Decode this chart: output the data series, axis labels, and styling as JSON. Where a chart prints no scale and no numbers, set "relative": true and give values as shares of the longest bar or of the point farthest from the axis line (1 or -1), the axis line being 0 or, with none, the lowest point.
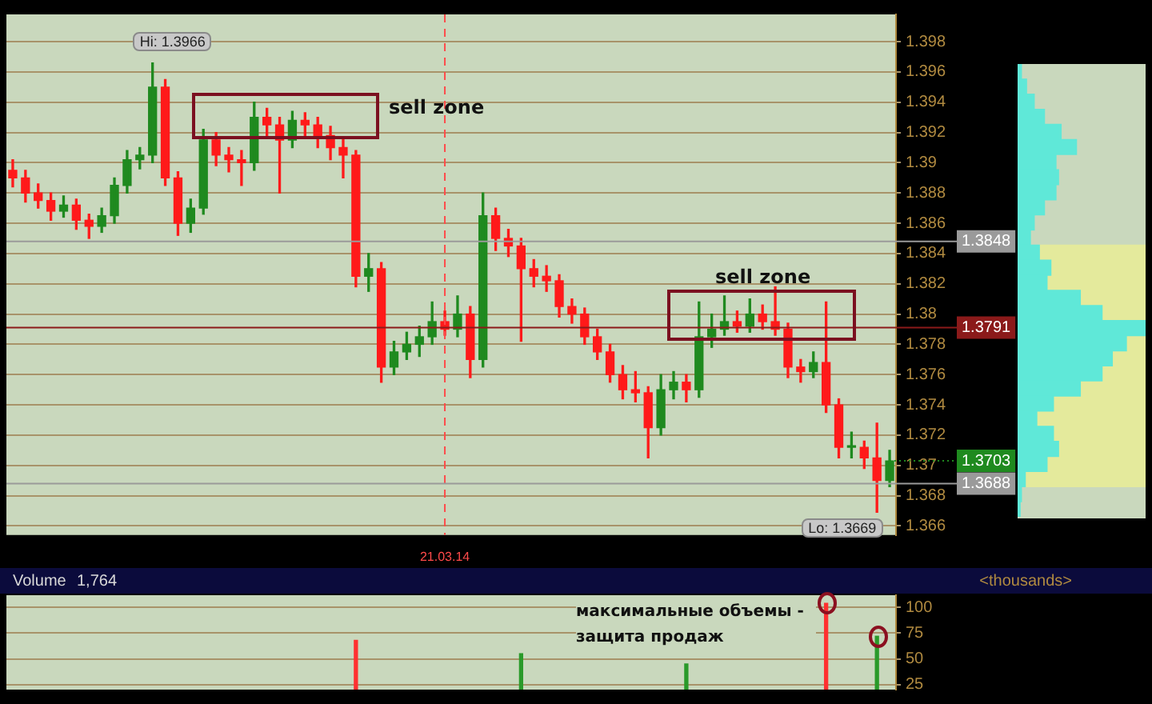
{
  "chart_data": [
    {
      "type": "candlestick",
      "categories": [
        null,
        null,
        null,
        null,
        null,
        null,
        null,
        null,
        null,
        null,
        null,
        null,
        null,
        null,
        null,
        null,
        null,
        null,
        null,
        null,
        null,
        null,
        null,
        null,
        null,
        null,
        null,
        null,
        null,
        null,
        null,
        null,
        null,
        null,
        "21.03.14",
        null,
        null,
        null,
        null,
        null,
        null,
        null,
        null,
        null,
        null,
        null,
        null,
        null,
        null,
        null,
        null,
        null,
        null,
        null,
        null,
        null,
        null,
        null,
        null,
        null,
        null,
        null,
        null,
        null,
        null,
        null,
        null,
        null,
        null,
        null
      ],
      "ohlc": [
        [
          1.3895,
          1.3902,
          1.3884,
          1.389
        ],
        [
          1.389,
          1.3895,
          1.3874,
          1.388
        ],
        [
          1.388,
          1.3886,
          1.387,
          1.3875
        ],
        [
          1.3875,
          1.388,
          1.3862,
          1.3868
        ],
        [
          1.3868,
          1.3878,
          1.3864,
          1.3872
        ],
        [
          1.3872,
          1.3876,
          1.3856,
          1.3862
        ],
        [
          1.3862,
          1.3866,
          1.385,
          1.3858
        ],
        [
          1.3858,
          1.387,
          1.3854,
          1.3865
        ],
        [
          1.3865,
          1.389,
          1.386,
          1.3885
        ],
        [
          1.3885,
          1.3908,
          1.388,
          1.3902
        ],
        [
          1.3902,
          1.391,
          1.3896,
          1.3905
        ],
        [
          1.3905,
          1.3966,
          1.39,
          1.395
        ],
        [
          1.395,
          1.3955,
          1.3885,
          1.389
        ],
        [
          1.389,
          1.3894,
          1.3852,
          1.386
        ],
        [
          1.386,
          1.3876,
          1.3854,
          1.387
        ],
        [
          1.387,
          1.3922,
          1.3866,
          1.3915
        ],
        [
          1.3915,
          1.392,
          1.3898,
          1.3905
        ],
        [
          1.3905,
          1.391,
          1.3894,
          1.3902
        ],
        [
          1.3902,
          1.3908,
          1.3885,
          1.39
        ],
        [
          1.39,
          1.394,
          1.3895,
          1.393
        ],
        [
          1.393,
          1.3936,
          1.3918,
          1.3925
        ],
        [
          1.3925,
          1.393,
          1.388,
          1.3915
        ],
        [
          1.3915,
          1.3934,
          1.391,
          1.3928
        ],
        [
          1.3928,
          1.3933,
          1.3918,
          1.3925
        ],
        [
          1.3925,
          1.393,
          1.391,
          1.3918
        ],
        [
          1.3918,
          1.3924,
          1.3902,
          1.391
        ],
        [
          1.391,
          1.3916,
          1.389,
          1.3905
        ],
        [
          1.3905,
          1.3908,
          1.3818,
          1.3825
        ],
        [
          1.3825,
          1.384,
          1.3815,
          1.383
        ],
        [
          1.383,
          1.3834,
          1.3755,
          1.3765
        ],
        [
          1.3765,
          1.3782,
          1.376,
          1.3775
        ],
        [
          1.3775,
          1.3788,
          1.377,
          1.378
        ],
        [
          1.378,
          1.3792,
          1.3772,
          1.3785
        ],
        [
          1.3785,
          1.3808,
          1.378,
          1.3795
        ],
        [
          1.3795,
          1.3802,
          1.3786,
          1.379
        ],
        [
          1.379,
          1.3812,
          1.3785,
          1.38
        ],
        [
          1.38,
          1.3805,
          1.3758,
          1.377
        ],
        [
          1.377,
          1.388,
          1.3765,
          1.3865
        ],
        [
          1.3865,
          1.387,
          1.3842,
          1.385
        ],
        [
          1.385,
          1.3856,
          1.3838,
          1.3845
        ],
        [
          1.3845,
          1.385,
          1.3782,
          1.383
        ],
        [
          1.383,
          1.3836,
          1.3818,
          1.3825
        ],
        [
          1.3825,
          1.3832,
          1.3815,
          1.3822
        ],
        [
          1.3822,
          1.3826,
          1.3798,
          1.3805
        ],
        [
          1.3805,
          1.381,
          1.3794,
          1.38
        ],
        [
          1.38,
          1.3804,
          1.378,
          1.3785
        ],
        [
          1.3785,
          1.379,
          1.377,
          1.3775
        ],
        [
          1.3775,
          1.378,
          1.3755,
          1.376
        ],
        [
          1.376,
          1.3766,
          1.3744,
          1.375
        ],
        [
          1.375,
          1.3762,
          1.3742,
          1.3748
        ],
        [
          1.3748,
          1.3752,
          1.3705,
          1.3725
        ],
        [
          1.3725,
          1.376,
          1.372,
          1.375
        ],
        [
          1.375,
          1.3762,
          1.3744,
          1.3755
        ],
        [
          1.3755,
          1.376,
          1.3742,
          1.375
        ],
        [
          1.375,
          1.3808,
          1.3745,
          1.3785
        ],
        [
          1.3785,
          1.38,
          1.3778,
          1.379
        ],
        [
          1.379,
          1.3812,
          1.3786,
          1.3795
        ],
        [
          1.3795,
          1.3802,
          1.3788,
          1.3792
        ],
        [
          1.3792,
          1.381,
          1.3788,
          1.38
        ],
        [
          1.38,
          1.3806,
          1.379,
          1.3795
        ],
        [
          1.3795,
          1.3818,
          1.3786,
          1.379
        ],
        [
          1.379,
          1.3794,
          1.3758,
          1.3765
        ],
        [
          1.3765,
          1.377,
          1.3755,
          1.3762
        ],
        [
          1.3762,
          1.3775,
          1.3758,
          1.3768
        ],
        [
          1.3768,
          1.3808,
          1.3735,
          1.374
        ],
        [
          1.374,
          1.3744,
          1.3705,
          1.3712
        ],
        [
          1.3712,
          1.3722,
          1.3705,
          1.3712
        ],
        [
          1.3712,
          1.3716,
          1.3698,
          1.3705
        ],
        [
          1.3705,
          1.3728,
          1.3669,
          1.369
        ],
        [
          1.369,
          1.371,
          1.3686,
          1.3703
        ]
      ],
      "ylim": [
        1.3654,
        1.3998
      ],
      "yticks": [
        1.366,
        1.368,
        1.37,
        1.372,
        1.374,
        1.376,
        1.378,
        1.38,
        1.382,
        1.384,
        1.386,
        1.388,
        1.39,
        1.392,
        1.394,
        1.396,
        1.398
      ],
      "grid": "y",
      "legend": false,
      "ref_lines": [
        {
          "axis": "x",
          "value": "21.03.14",
          "color": "#ff4a4a",
          "line_style": "dashed"
        },
        {
          "axis": "y",
          "value": 1.3848,
          "label": "1.3848",
          "color": "#9a9a9a",
          "line_style": "solid"
        },
        {
          "axis": "y",
          "value": 1.3791,
          "label": "1.3791",
          "color": "#8b1a1a",
          "line_style": "solid"
        },
        {
          "axis": "y",
          "value": 1.3688,
          "label": "1.3688",
          "color": "#9a9a9a",
          "line_style": "solid"
        }
      ],
      "annotations": [
        "Hi: 1.3966",
        "Lo: 1.3669",
        "1.3703",
        "sell zone",
        "sell zone"
      ]
    },
    {
      "type": "bar",
      "title": "Volume",
      "subtitle": "1,764",
      "categories": [
        null,
        null,
        null,
        null,
        null,
        null,
        null,
        null,
        null,
        null,
        null,
        null,
        null,
        null,
        null,
        null,
        null,
        null,
        null,
        null,
        null,
        null,
        null,
        null,
        null,
        null,
        null,
        null,
        null,
        null,
        null,
        null,
        null,
        null,
        null,
        null,
        null,
        null,
        null,
        null,
        null,
        null,
        null,
        null,
        null,
        null,
        null,
        null,
        null,
        null,
        null,
        null,
        null,
        null,
        null,
        null,
        null,
        null,
        null,
        null,
        null,
        null,
        null,
        null,
        null,
        null,
        null,
        null,
        null,
        null
      ],
      "values": [
        null,
        null,
        null,
        null,
        null,
        null,
        null,
        null,
        null,
        null,
        null,
        null,
        null,
        null,
        null,
        null,
        null,
        null,
        null,
        null,
        null,
        null,
        null,
        null,
        null,
        null,
        null,
        68,
        null,
        null,
        null,
        null,
        null,
        null,
        null,
        null,
        null,
        null,
        null,
        null,
        55,
        null,
        null,
        null,
        null,
        null,
        null,
        null,
        null,
        null,
        null,
        null,
        null,
        45,
        null,
        null,
        null,
        null,
        null,
        null,
        null,
        null,
        null,
        null,
        104,
        null,
        null,
        null,
        72,
        null
      ],
      "colors": [
        "#ff3030",
        "#ff3030",
        "#ff3030",
        "#ff3030",
        "#ff3030",
        "#ff3030",
        "#ff3030",
        "#ff3030",
        "#ff3030",
        "#ff3030",
        "#ff3030",
        "#ff3030",
        "#ff3030",
        "#ff3030",
        "#ff3030",
        "#ff3030",
        "#ff3030",
        "#ff3030",
        "#ff3030",
        "#ff3030",
        "#ff3030",
        "#ff3030",
        "#ff3030",
        "#ff3030",
        "#ff3030",
        "#ff3030",
        "#ff3030",
        "#ff3030",
        "#ff3030",
        "#ff3030",
        "#ff3030",
        "#ff3030",
        "#ff3030",
        "#ff3030",
        "#ff3030",
        "#ff3030",
        "#ff3030",
        "#ff3030",
        "#ff3030",
        "#ff3030",
        "#2a9a2a",
        "#ff3030",
        "#ff3030",
        "#ff3030",
        "#ff3030",
        "#ff3030",
        "#ff3030",
        "#ff3030",
        "#ff3030",
        "#ff3030",
        "#ff3030",
        "#ff3030",
        "#ff3030",
        "#2a9a2a",
        "#ff3030",
        "#ff3030",
        "#ff3030",
        "#ff3030",
        "#ff3030",
        "#ff3030",
        "#ff3030",
        "#ff3030",
        "#ff3030",
        "#ff3030",
        "#ff3030",
        "#ff3030",
        "#ff3030",
        "#ff3030",
        "#2a9a2a",
        "#ff3030"
      ],
      "ylim": [
        20,
        112
      ],
      "yticks": [
        25,
        50,
        75,
        100
      ],
      "grid": "y",
      "legend": false,
      "tick_labels": "y",
      "annotations": [
        "<thousands>",
        "максимальные объемы - защита продаж"
      ]
    },
    {
      "type": "bar",
      "orientation": "horizontal",
      "stacked": true,
      "relative": true,
      "legend": false,
      "categories": [
        null,
        null,
        null,
        null,
        null,
        null,
        null,
        null,
        null,
        null,
        null,
        null,
        null,
        null,
        null,
        null,
        null,
        null,
        null,
        null,
        null,
        null,
        null,
        null,
        null,
        null,
        null,
        null,
        null,
        null
      ],
      "series": [
        {
          "color": "#5fe8d8",
          "values": [
            0.03,
            0.07,
            0.13,
            0.21,
            0.34,
            0.46,
            0.3,
            0.32,
            0.3,
            0.21,
            0.13,
            0.1,
            0.17,
            0.26,
            0.23,
            0.49,
            0.66,
            1,
            0.85,
            0.74,
            0.66,
            0.49,
            0.28,
            0.15,
            0.28,
            0.32,
            0.23,
            0.06,
            0.03,
            0.02
          ]
        },
        {
          "color": "#e4ea9c",
          "values": [
            null,
            null,
            null,
            null,
            null,
            null,
            null,
            null,
            null,
            null,
            null,
            null,
            0.83,
            0.74,
            0.77,
            0.51,
            0.34,
            null,
            0.15,
            0.26,
            0.34,
            0.51,
            0.72,
            0.85,
            0.72,
            0.68,
            0.77,
            0.94,
            null,
            null
          ]
        }
      ]
    }
  ]
}
